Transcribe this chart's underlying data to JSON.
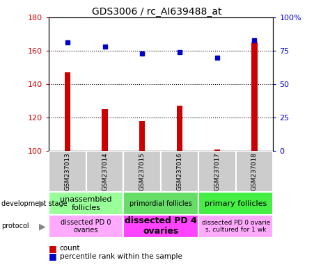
{
  "title": "GDS3006 / rc_AI639488_at",
  "samples": [
    "GSM237013",
    "GSM237014",
    "GSM237015",
    "GSM237016",
    "GSM237017",
    "GSM237018"
  ],
  "count_values": [
    147,
    125,
    118,
    127,
    101,
    165
  ],
  "percentile_values": [
    81,
    78,
    73,
    74,
    70,
    83
  ],
  "ylim_left": [
    100,
    180
  ],
  "ylim_right": [
    0,
    100
  ],
  "yticks_left": [
    100,
    120,
    140,
    160,
    180
  ],
  "yticks_right": [
    0,
    25,
    50,
    75,
    100
  ],
  "ytick_labels_right": [
    "0",
    "25",
    "50",
    "75",
    "100%"
  ],
  "bar_color": "#cc0000",
  "dot_color": "#0000cc",
  "dev_stage_groups": [
    {
      "label": "unassembled\nfollicles",
      "start": 0,
      "end": 2,
      "color": "#99ff99",
      "fontsize": 8,
      "bold": false
    },
    {
      "label": "primordial follicles",
      "start": 2,
      "end": 4,
      "color": "#66dd66",
      "fontsize": 7,
      "bold": false
    },
    {
      "label": "primary follicles",
      "start": 4,
      "end": 6,
      "color": "#44ee44",
      "fontsize": 8,
      "bold": false
    }
  ],
  "protocol_groups": [
    {
      "label": "dissected PD 0\novaries",
      "start": 0,
      "end": 2,
      "color": "#ffaaff",
      "fontsize": 7,
      "bold": false
    },
    {
      "label": "dissected PD 4\novaries",
      "start": 2,
      "end": 4,
      "color": "#ff44ff",
      "fontsize": 9,
      "bold": true
    },
    {
      "label": "dissected PD 0 ovarie\ns, cultured for 1 wk",
      "start": 4,
      "end": 6,
      "color": "#ffaaff",
      "fontsize": 6.5,
      "bold": false
    }
  ]
}
